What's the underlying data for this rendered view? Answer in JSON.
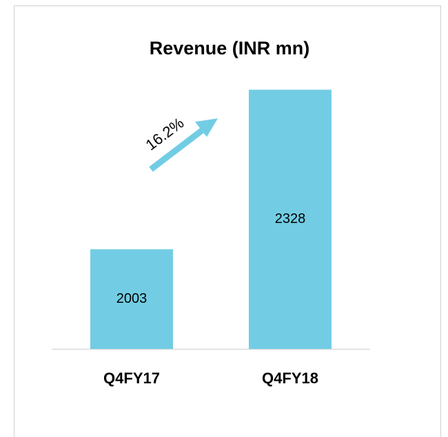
{
  "chart_data": {
    "type": "bar",
    "title": "Revenue (INR mn)",
    "categories": [
      "Q4FY17",
      "Q4FY18"
    ],
    "values": [
      2003,
      2328
    ],
    "color": "#72cde4",
    "ylim": [
      1800,
      2400
    ],
    "annotation": "16.2%"
  }
}
